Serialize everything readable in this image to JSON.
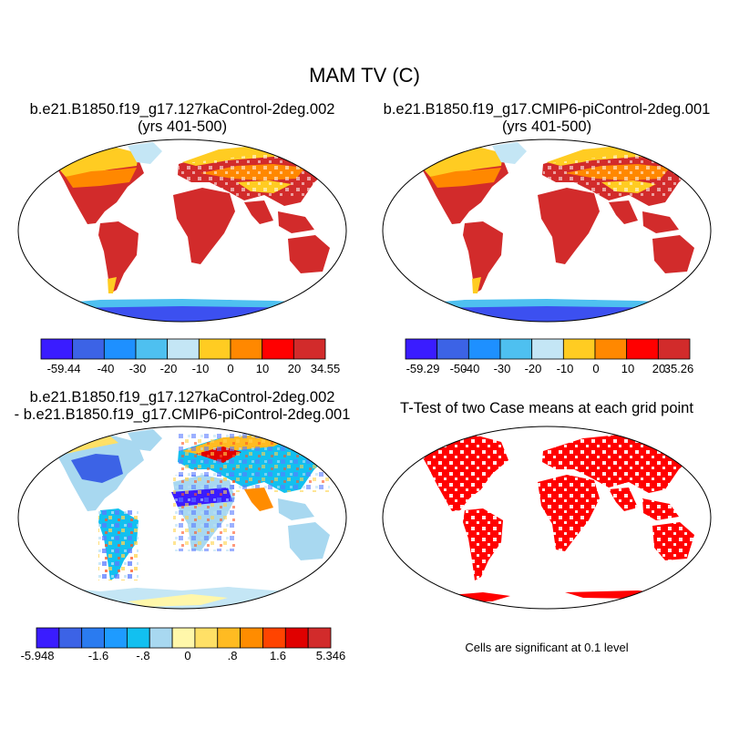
{
  "figure": {
    "title": "MAM TV (C)"
  },
  "panels": [
    {
      "title_line1": "b.e21.B1850.f19_g17.127kaControl-2deg.002",
      "title_line2": "(yrs 401-500)",
      "colorbar": {
        "colors": [
          "#3a1cff",
          "#3c63e6",
          "#1e90ff",
          "#4ec0f0",
          "#c4e6f5",
          "#ffcc22",
          "#ff8800",
          "#ff0000",
          "#d22b2b"
        ],
        "labels": [
          "-59.44",
          "-40",
          "-30",
          "-20",
          "-10",
          "0",
          "10",
          "20",
          "34.55"
        ]
      }
    },
    {
      "title_line1": "b.e21.B1850.f19_g17.CMIP6-piControl-2deg.001",
      "title_line2": "(yrs 401-500)",
      "colorbar": {
        "colors": [
          "#3a1cff",
          "#3c63e6",
          "#1e90ff",
          "#4ec0f0",
          "#c4e6f5",
          "#ffcc22",
          "#ff8800",
          "#ff0000",
          "#d22b2b"
        ],
        "labels": [
          "-59.29",
          "-50",
          "-40",
          "-30",
          "-20",
          "-10",
          "0",
          "10",
          "20",
          "35.26"
        ]
      }
    },
    {
      "title_line1": "b.e21.B1850.f19_g17.127kaControl-2deg.002",
      "title_line2": "- b.e21.B1850.f19_g17.CMIP6-piControl-2deg.001",
      "colorbar": {
        "colors": [
          "#3a1cff",
          "#3c63e6",
          "#2a7bf0",
          "#1e9bff",
          "#12c0f0",
          "#a8d8f0",
          "#fff7aa",
          "#ffe066",
          "#ffbb22",
          "#ff8c00",
          "#ff4400",
          "#e00000",
          "#d22b2b"
        ],
        "labels": [
          "-5.948",
          "-1.6",
          "-.8",
          "0",
          ".8",
          "1.6",
          "5.346"
        ]
      }
    },
    {
      "title_line1": "T-Test of two Case means at each grid point",
      "note": "Cells are significant at 0.1 level"
    }
  ]
}
